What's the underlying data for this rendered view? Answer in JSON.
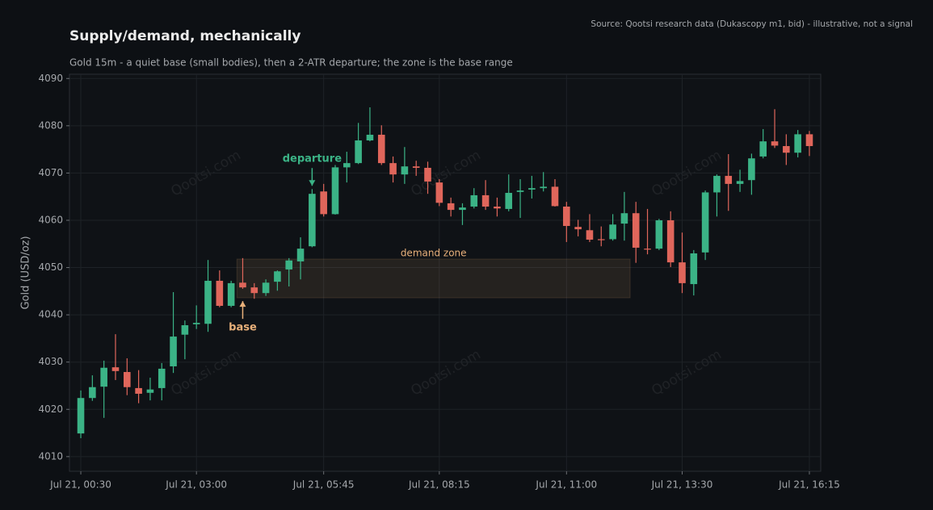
{
  "chart_data": {
    "type": "candlestick",
    "title": "Supply/demand, mechanically",
    "subtitle": "Gold 15m - a quiet base (small bodies), then a 2-ATR departure; the zone is the base range",
    "source": "Source: Qootsi research data (Dukascopy m1, bid) - illustrative, not a signal",
    "watermark": "Qootsi.com",
    "y_label": "Gold (USD/oz)",
    "x": [
      "Jul 21, 00:30",
      "Jul 21, 00:45",
      "Jul 21, 01:00",
      "Jul 21, 01:15",
      "Jul 21, 01:30",
      "Jul 21, 01:45",
      "Jul 21, 02:00",
      "Jul 21, 02:15",
      "Jul 21, 02:30",
      "Jul 21, 02:45",
      "Jul 21, 03:00",
      "Jul 21, 03:15",
      "Jul 21, 03:30",
      "Jul 21, 03:45",
      "Jul 21, 04:00",
      "Jul 21, 04:15",
      "Jul 21, 04:30",
      "Jul 21, 04:45",
      "Jul 21, 05:00",
      "Jul 21, 05:15",
      "Jul 21, 05:30",
      "Jul 21, 05:45",
      "Jul 21, 06:00",
      "Jul 21, 06:15",
      "Jul 21, 06:30",
      "Jul 21, 06:45",
      "Jul 21, 07:00",
      "Jul 21, 07:15",
      "Jul 21, 07:30",
      "Jul 21, 07:45",
      "Jul 21, 08:00",
      "Jul 21, 08:15",
      "Jul 21, 08:30",
      "Jul 21, 08:45",
      "Jul 21, 09:00",
      "Jul 21, 09:15",
      "Jul 21, 09:30",
      "Jul 21, 09:45",
      "Jul 21, 10:00",
      "Jul 21, 10:15",
      "Jul 21, 10:30",
      "Jul 21, 10:45",
      "Jul 21, 11:00",
      "Jul 21, 11:15",
      "Jul 21, 11:30",
      "Jul 21, 11:45",
      "Jul 21, 12:00",
      "Jul 21, 12:15",
      "Jul 21, 12:30",
      "Jul 21, 12:45",
      "Jul 21, 13:00",
      "Jul 21, 13:15",
      "Jul 21, 13:30",
      "Jul 21, 13:45",
      "Jul 21, 14:00",
      "Jul 21, 14:15",
      "Jul 21, 14:30",
      "Jul 21, 14:45",
      "Jul 21, 15:00",
      "Jul 21, 15:15",
      "Jul 21, 15:30",
      "Jul 21, 15:45",
      "Jul 21, 16:00",
      "Jul 21, 16:15"
    ],
    "open": [
      4014.9,
      4022.4,
      4024.8,
      4028.9,
      4027.9,
      4024.5,
      4023.5,
      4024.5,
      4029.1,
      4035.8,
      4038,
      4038.1,
      4047.2,
      4041.9,
      4046.8,
      4045.8,
      4044.6,
      4047,
      4049.6,
      4051.3,
      4054.5,
      4066.1,
      4061.3,
      4071.2,
      4072.1,
      4076.9,
      4078.1,
      4072.1,
      4069.7,
      4071.4,
      4071.1,
      4068,
      4063.6,
      4062.2,
      4062.9,
      4065.3,
      4062.9,
      4062.4,
      4066,
      4066.5,
      4066.8,
      4067.1,
      4062.9,
      4058.6,
      4057.9,
      4056,
      4056,
      4059.3,
      4061.5,
      4054,
      4054,
      4060,
      4051.1,
      4046.5,
      4053.2,
      4065.9,
      4069.4,
      4067.7,
      4068.5,
      4073.5,
      4076.7,
      4075.7,
      4074.3,
      4078.2
    ],
    "high": [
      4024,
      4027.2,
      4030.3,
      4035.9,
      4030.8,
      4028.3,
      4026.7,
      4029.8,
      4044.8,
      4038.8,
      4042,
      4051.6,
      4049.4,
      4047.2,
      4052,
      4046.7,
      4047.5,
      4049.4,
      4052,
      4056.4,
      4066.6,
      4067.7,
      4071.7,
      4074.5,
      4080.6,
      4083.9,
      4080.1,
      4073.5,
      4075.5,
      4072.6,
      4072.4,
      4068.7,
      4064.8,
      4063.6,
      4066.8,
      4068.5,
      4064.8,
      4069.7,
      4068.7,
      4069.4,
      4070.2,
      4068.7,
      4063.9,
      4060.1,
      4061.3,
      4058.7,
      4061.3,
      4066,
      4063.9,
      4062.4,
      4060.3,
      4061.9,
      4057.4,
      4053.7,
      4066.3,
      4069.7,
      4074,
      4070.7,
      4074.1,
      4079.3,
      4083.5,
      4078.2,
      4079.1,
      4078.9
    ],
    "low": [
      4013.9,
      4021.8,
      4018.2,
      4026.2,
      4023,
      4021.3,
      4021.9,
      4021.9,
      4027.7,
      4030.6,
      4037,
      4036.4,
      4041.6,
      4041.6,
      4045.5,
      4043.4,
      4044,
      4045.1,
      4046,
      4047.5,
      4054.3,
      4060.8,
      4061.2,
      4068,
      4071.9,
      4076.7,
      4071.7,
      4068,
      4067.7,
      4069.4,
      4065.6,
      4063,
      4060.8,
      4059,
      4062.5,
      4062.2,
      4060.8,
      4061.9,
      4060.5,
      4064.6,
      4066.1,
      4062.9,
      4055.4,
      4056.6,
      4055.4,
      4054.5,
      4055.7,
      4055.7,
      4051,
      4052.8,
      4053.7,
      4050.1,
      4044.6,
      4044.1,
      4051.6,
      4060.8,
      4062,
      4066,
      4065.4,
      4073.1,
      4075.3,
      4071.7,
      4073.3,
      4073.6
    ],
    "close": [
      4022.4,
      4024.7,
      4028.8,
      4028.1,
      4024.7,
      4023.3,
      4024.2,
      4028.6,
      4035.4,
      4037.8,
      4038.3,
      4047.2,
      4041.9,
      4046.7,
      4045.8,
      4044.6,
      4046.8,
      4049.2,
      4051.5,
      4054,
      4065.6,
      4061.3,
      4071.2,
      4072.1,
      4076.9,
      4078.1,
      4072.1,
      4069.7,
      4071.4,
      4071.1,
      4068.2,
      4063.7,
      4062.2,
      4062.7,
      4065.3,
      4062.9,
      4062.5,
      4065.8,
      4066.3,
      4066.8,
      4067.1,
      4063,
      4058.8,
      4058.1,
      4055.9,
      4055.8,
      4059.1,
      4061.5,
      4054.2,
      4053.8,
      4060,
      4051.1,
      4046.7,
      4053,
      4065.9,
      4069.4,
      4067.7,
      4068.3,
      4073.1,
      4076.7,
      4075.8,
      4074.3,
      4078.2,
      4075.7
    ],
    "up_color": "#3bb386",
    "down_color": "#e0665b",
    "ylim": [
      4006.9,
      4090.9
    ],
    "yticks": [
      4010,
      4020,
      4030,
      4040,
      4050,
      4060,
      4070,
      4080,
      4090
    ],
    "xticks": [
      "Jul 21, 00:30",
      "Jul 21, 03:00",
      "Jul 21, 05:45",
      "Jul 21, 08:15",
      "Jul 21, 11:00",
      "Jul 21, 13:30",
      "Jul 21, 16:15"
    ],
    "grid": true,
    "zone": {
      "label": "demand zone",
      "low": 4043.6,
      "high": 4051.8,
      "start": "Jul 21, 03:45",
      "end": "Jul 21, 12:15",
      "color": "#e8b07a"
    },
    "annotations": [
      {
        "text": "departure",
        "x": "Jul 21, 05:30",
        "y": 4067.3,
        "direction": "down",
        "color": "#3bb386"
      },
      {
        "text": "base",
        "x": "Jul 21, 04:00",
        "y": 4042.9,
        "direction": "up",
        "color": "#e8b07a"
      }
    ]
  }
}
